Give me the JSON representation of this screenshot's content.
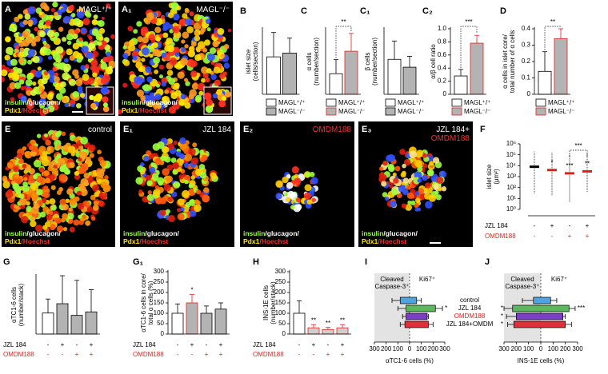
{
  "images": [
    {
      "panel_label": "A",
      "title": [
        [
          {
            "text": "MAGL⁺/⁺",
            "color": "#ffffff"
          }
        ]
      ],
      "stain": [
        [
          {
            "text": "insulin",
            "color": "#9cff3c"
          },
          {
            "text": "/glucagon/",
            "color": "#ffffff"
          }
        ],
        [
          {
            "text": "Pdx1",
            "color": "#ffe600"
          },
          {
            "text": "/Hoechst",
            "color": "#ff2a2a"
          }
        ]
      ]
    },
    {
      "panel_label": "A₁",
      "title": [
        [
          {
            "text": "MAGL⁻/⁻",
            "color": "#ffffff"
          }
        ]
      ],
      "stain": [
        [
          {
            "text": "insulin",
            "color": "#9cff3c"
          },
          {
            "text": "/glucagon/",
            "color": "#ffffff"
          }
        ],
        [
          {
            "text": "Pdx1",
            "color": "#ffe600"
          },
          {
            "text": "/Hoechst",
            "color": "#ff2a2a"
          }
        ]
      ]
    },
    {
      "panel_label": "E",
      "title": [
        [
          {
            "text": "control",
            "color": "#ffffff"
          }
        ]
      ],
      "stain": [
        [
          {
            "text": "insulin",
            "color": "#9cff3c"
          },
          {
            "text": "/glucagon/",
            "color": "#ffffff"
          }
        ],
        [
          {
            "text": "Pdx1",
            "color": "#ffe600"
          },
          {
            "text": "/Hoechst",
            "color": "#ff2a2a"
          }
        ]
      ]
    },
    {
      "panel_label": "E₁",
      "title": [
        [
          {
            "text": "JZL 184",
            "color": "#ffffff"
          }
        ]
      ],
      "stain": [
        [
          {
            "text": "insulin",
            "color": "#9cff3c"
          },
          {
            "text": "/glucagon/",
            "color": "#ffffff"
          }
        ],
        [
          {
            "text": "Pdx1",
            "color": "#ffe600"
          },
          {
            "text": "/Hoechst",
            "color": "#ff2a2a"
          }
        ]
      ]
    },
    {
      "panel_label": "E₂",
      "title": [
        [
          {
            "text": "OMDM188",
            "color": "#ff2a2a"
          }
        ]
      ],
      "stain": [
        [
          {
            "text": "insulin",
            "color": "#9cff3c"
          },
          {
            "text": "/glucagon/",
            "color": "#ffffff"
          }
        ],
        [
          {
            "text": "Pdx1",
            "color": "#ffe600"
          },
          {
            "text": "/Hoechst",
            "color": "#ff2a2a"
          }
        ]
      ]
    },
    {
      "panel_label": "E₃",
      "title": [
        [
          {
            "text": "JZL 184+",
            "color": "#ffffff"
          }
        ],
        [
          {
            "text": "OMDM188",
            "color": "#ff2a2a"
          }
        ]
      ],
      "stain": [
        [
          {
            "text": "insulin",
            "color": "#9cff3c"
          },
          {
            "text": "/glucagon/",
            "color": "#ffffff"
          }
        ],
        [
          {
            "text": "Pdx1",
            "color": "#ffe600"
          },
          {
            "text": "/Hoechst",
            "color": "#ff2a2a"
          }
        ]
      ]
    }
  ],
  "chart_data": [
    {
      "type": "bar",
      "panel_label": "B",
      "ylabel": [
        "islet size",
        "(cells/section)"
      ],
      "categories": [
        "MAGL⁺/⁺",
        "MAGL⁻/⁻"
      ],
      "values": [
        100,
        110
      ],
      "errors": [
        65,
        40
      ],
      "colors": [
        "#ffffff",
        "#b3b3b3"
      ],
      "edges": [
        "#000000",
        "#000000"
      ],
      "ylim": [
        0,
        175
      ]
    },
    {
      "type": "bar",
      "panel_label": "C",
      "ylabel": [
        "α cells",
        "(number/section)"
      ],
      "categories": [
        "MAGL⁺/⁺",
        "MAGL⁻/⁻"
      ],
      "values": [
        22,
        46
      ],
      "errors": [
        15,
        19
      ],
      "colors": [
        "#ffffff",
        "#b3b3b3"
      ],
      "edges": [
        "#000000",
        "#e02020"
      ],
      "ylim": [
        0,
        70
      ],
      "significance": "**"
    },
    {
      "type": "bar",
      "panel_label": "C₁",
      "ylabel": [
        "β cells",
        "(number/section)"
      ],
      "categories": [
        "MAGL⁺/⁺",
        "MAGL⁻/⁻"
      ],
      "values": [
        80,
        62
      ],
      "errors": [
        42,
        25
      ],
      "colors": [
        "#ffffff",
        "#b3b3b3"
      ],
      "edges": [
        "#000000",
        "#000000"
      ],
      "ylim": [
        0,
        150
      ]
    },
    {
      "type": "bar",
      "panel_label": "C₂",
      "ylabel": [
        "α/β cell ratio"
      ],
      "categories": [
        "MAGL⁺/⁺",
        "MAGL⁻/⁻"
      ],
      "values": [
        0.28,
        0.78
      ],
      "errors": [
        0.1,
        0.12
      ],
      "colors": [
        "#ffffff",
        "#b3b3b3"
      ],
      "edges": [
        "#000000",
        "#e02020"
      ],
      "ylim": [
        0,
        1
      ],
      "yticks": [
        0,
        0.2,
        0.4,
        0.6,
        0.8,
        {
          "value": 1,
          "label": "1.0"
        }
      ],
      "significance": "***"
    },
    {
      "type": "bar",
      "panel_label": "D",
      "ylabel": [
        "α cells in islet core/",
        "total number of α cells"
      ],
      "categories": [
        "MAGL⁺/⁺",
        "MAGL⁻/⁻"
      ],
      "values": [
        0.14,
        0.34
      ],
      "errors": [
        0.12,
        0.06
      ],
      "colors": [
        "#ffffff",
        "#b3b3b3"
      ],
      "edges": [
        "#000000",
        "#e02020"
      ],
      "ylim": [
        0,
        0.4
      ],
      "yticks": [
        0,
        0.1,
        0.2,
        0.3,
        0.4
      ],
      "significance": "**"
    },
    {
      "type": "log_dot",
      "panel_label": "F",
      "ylabel": [
        "islet size",
        "(μm²)"
      ],
      "log": true,
      "ylim": [
        1,
        1000000
      ],
      "yticks": [
        {
          "value": 1,
          "label": "10⁰"
        },
        {
          "value": 10,
          "label": "10¹"
        },
        {
          "value": 100,
          "label": "10²"
        },
        {
          "value": 1000,
          "label": "10³"
        },
        {
          "value": 10000,
          "label": "10⁴"
        },
        {
          "value": 100000,
          "label": "10⁵"
        },
        {
          "value": 1000000,
          "label": "10⁶"
        }
      ],
      "values": [
        8000,
        4000,
        2000,
        3000
      ],
      "min": [
        30,
        20,
        5,
        40
      ],
      "max": [
        200000,
        150000,
        100000,
        150000
      ],
      "colors": [
        "#000000",
        "#e02020",
        "#e02020",
        "#e02020"
      ],
      "stars": [
        null,
        "*",
        "***",
        "**"
      ],
      "bracket": "***",
      "conditions": [
        {
          "name": "JZL 184",
          "color": "#000000",
          "signs": [
            "-",
            "+",
            "-",
            "+"
          ]
        },
        {
          "name": "OMDM188",
          "color": "#e02020",
          "signs": [
            "-",
            "-",
            "+",
            "+"
          ]
        }
      ]
    },
    {
      "type": "bar",
      "panel_label": "G",
      "ylabel": [
        "αTC1-6 cells",
        "(number/stack)"
      ],
      "values": [
        18,
        26,
        16,
        19
      ],
      "errors": [
        12,
        24,
        30,
        19
      ],
      "colors": [
        "#ffffff",
        "#b3b3b3",
        "#b3b3b3",
        "#b3b3b3"
      ],
      "edges": [
        "#000000",
        "#000000",
        "#000000",
        "#000000"
      ],
      "ylim": [
        0,
        50
      ],
      "conditions": [
        {
          "name": "JZL 184",
          "color": "#000000",
          "signs": [
            "-",
            "+",
            "-",
            "+"
          ]
        },
        {
          "name": "OMDM188",
          "color": "#e02020",
          "signs": [
            "-",
            "-",
            "+",
            "+"
          ]
        }
      ]
    },
    {
      "type": "bar",
      "panel_label": "G₁",
      "ylabel": [
        "αTC1-6 cells in core/",
        "total α cells (%)"
      ],
      "values": [
        100,
        150,
        100,
        120
      ],
      "errors": [
        45,
        40,
        35,
        30
      ],
      "colors": [
        "#ffffff",
        "#b3b3b3",
        "#b3b3b3",
        "#b3b3b3"
      ],
      "edges": [
        "#000000",
        "#e02020",
        "#000000",
        "#000000"
      ],
      "ylim": [
        0,
        300
      ],
      "yticks": [
        0,
        50,
        100,
        150,
        200,
        250,
        300
      ],
      "stars": [
        null,
        "*",
        null,
        null
      ],
      "conditions": [
        {
          "name": "JZL 184",
          "color": "#000000",
          "signs": [
            "-",
            "+",
            "-",
            "+"
          ]
        },
        {
          "name": "OMDM188",
          "color": "#e02020",
          "signs": [
            "-",
            "-",
            "+",
            "+"
          ]
        }
      ]
    },
    {
      "type": "bar",
      "panel_label": "H",
      "ylabel": [
        "INS-1E cells",
        "(number/stack)"
      ],
      "values": [
        100,
        30,
        22,
        30
      ],
      "errors": [
        60,
        15,
        10,
        15
      ],
      "colors": [
        "#ffffff",
        "#cfcfcf",
        "#cfcfcf",
        "#cfcfcf"
      ],
      "edges": [
        "#000000",
        "#e02020",
        "#e02020",
        "#e02020"
      ],
      "ylim": [
        0,
        300
      ],
      "yticks": [
        0,
        50,
        100,
        150,
        200,
        250,
        300
      ],
      "stars": [
        null,
        "**",
        "**",
        "**"
      ],
      "conditions": [
        {
          "name": "JZL 184",
          "color": "#000000",
          "signs": [
            "-",
            "+",
            "-",
            "+"
          ]
        },
        {
          "name": "OMDM188",
          "color": "#e02020",
          "signs": [
            "-",
            "-",
            "+",
            "+"
          ]
        }
      ]
    },
    {
      "type": "box_h",
      "panel_label": "I",
      "xlabel": "αTC1-6 cells (%)",
      "region_labels": {
        "left": [
          "Cleaved",
          "Caspase-3⁺"
        ],
        "right": [
          "Ki67⁺"
        ]
      },
      "xlim": [
        -300,
        300
      ],
      "xticks": [
        {
          "value": -300,
          "label": "300"
        },
        {
          "value": -200,
          "label": "200"
        },
        {
          "value": -100,
          "label": "100"
        },
        0,
        100,
        200,
        300
      ],
      "series": [
        {
          "color": "#4fa3e0",
          "whisker": [
            -150,
            100
          ],
          "box": [
            -80,
            60
          ]
        },
        {
          "color": "#5cb85c",
          "whisker": [
            -100,
            280
          ],
          "box": [
            -30,
            220
          ]
        },
        {
          "color": "#7b3fc4",
          "whisker": [
            -60,
            160
          ],
          "box": [
            -30,
            150
          ]
        },
        {
          "color": "#e0303a",
          "whisker": [
            -80,
            200
          ],
          "box": [
            -40,
            160
          ]
        }
      ],
      "stars_right": [
        null,
        "*",
        null,
        null
      ]
    },
    {
      "type": "box_h",
      "panel_label": "J",
      "xlabel": "INS-1E cells (%)",
      "region_labels": {
        "left": [
          "Cleaved",
          "Caspase-3⁺"
        ],
        "right": [
          "Ki67⁺"
        ]
      },
      "xlim": [
        -300,
        300
      ],
      "xticks": [
        {
          "value": -300,
          "label": "300"
        },
        {
          "value": -200,
          "label": "200"
        },
        {
          "value": -100,
          "label": "100"
        },
        0,
        100,
        200,
        300
      ],
      "series": [
        {
          "name": "control",
          "label_color": "#000000",
          "color": "#4fa3e0",
          "whisker": [
            -150,
            130
          ],
          "box": [
            -60,
            80
          ]
        },
        {
          "name": "JZL 184",
          "label_color": "#000000",
          "color": "#5cb85c",
          "whisker": [
            -300,
            280
          ],
          "box": [
            -230,
            230
          ]
        },
        {
          "name": "OMDM188",
          "label_color": "#e02020",
          "color": "#7b3fc4",
          "whisker": [
            -280,
            200
          ],
          "box": [
            -200,
            180
          ]
        },
        {
          "name": "JZL 184+OMDM",
          "label_color": "#000000",
          "color": "#e0303a",
          "whisker": [
            -270,
            250
          ],
          "box": [
            -220,
            200
          ]
        }
      ],
      "stars_right": [
        null,
        "***",
        null,
        null
      ],
      "stars_left": [
        null,
        "*",
        "*",
        "*"
      ]
    }
  ]
}
